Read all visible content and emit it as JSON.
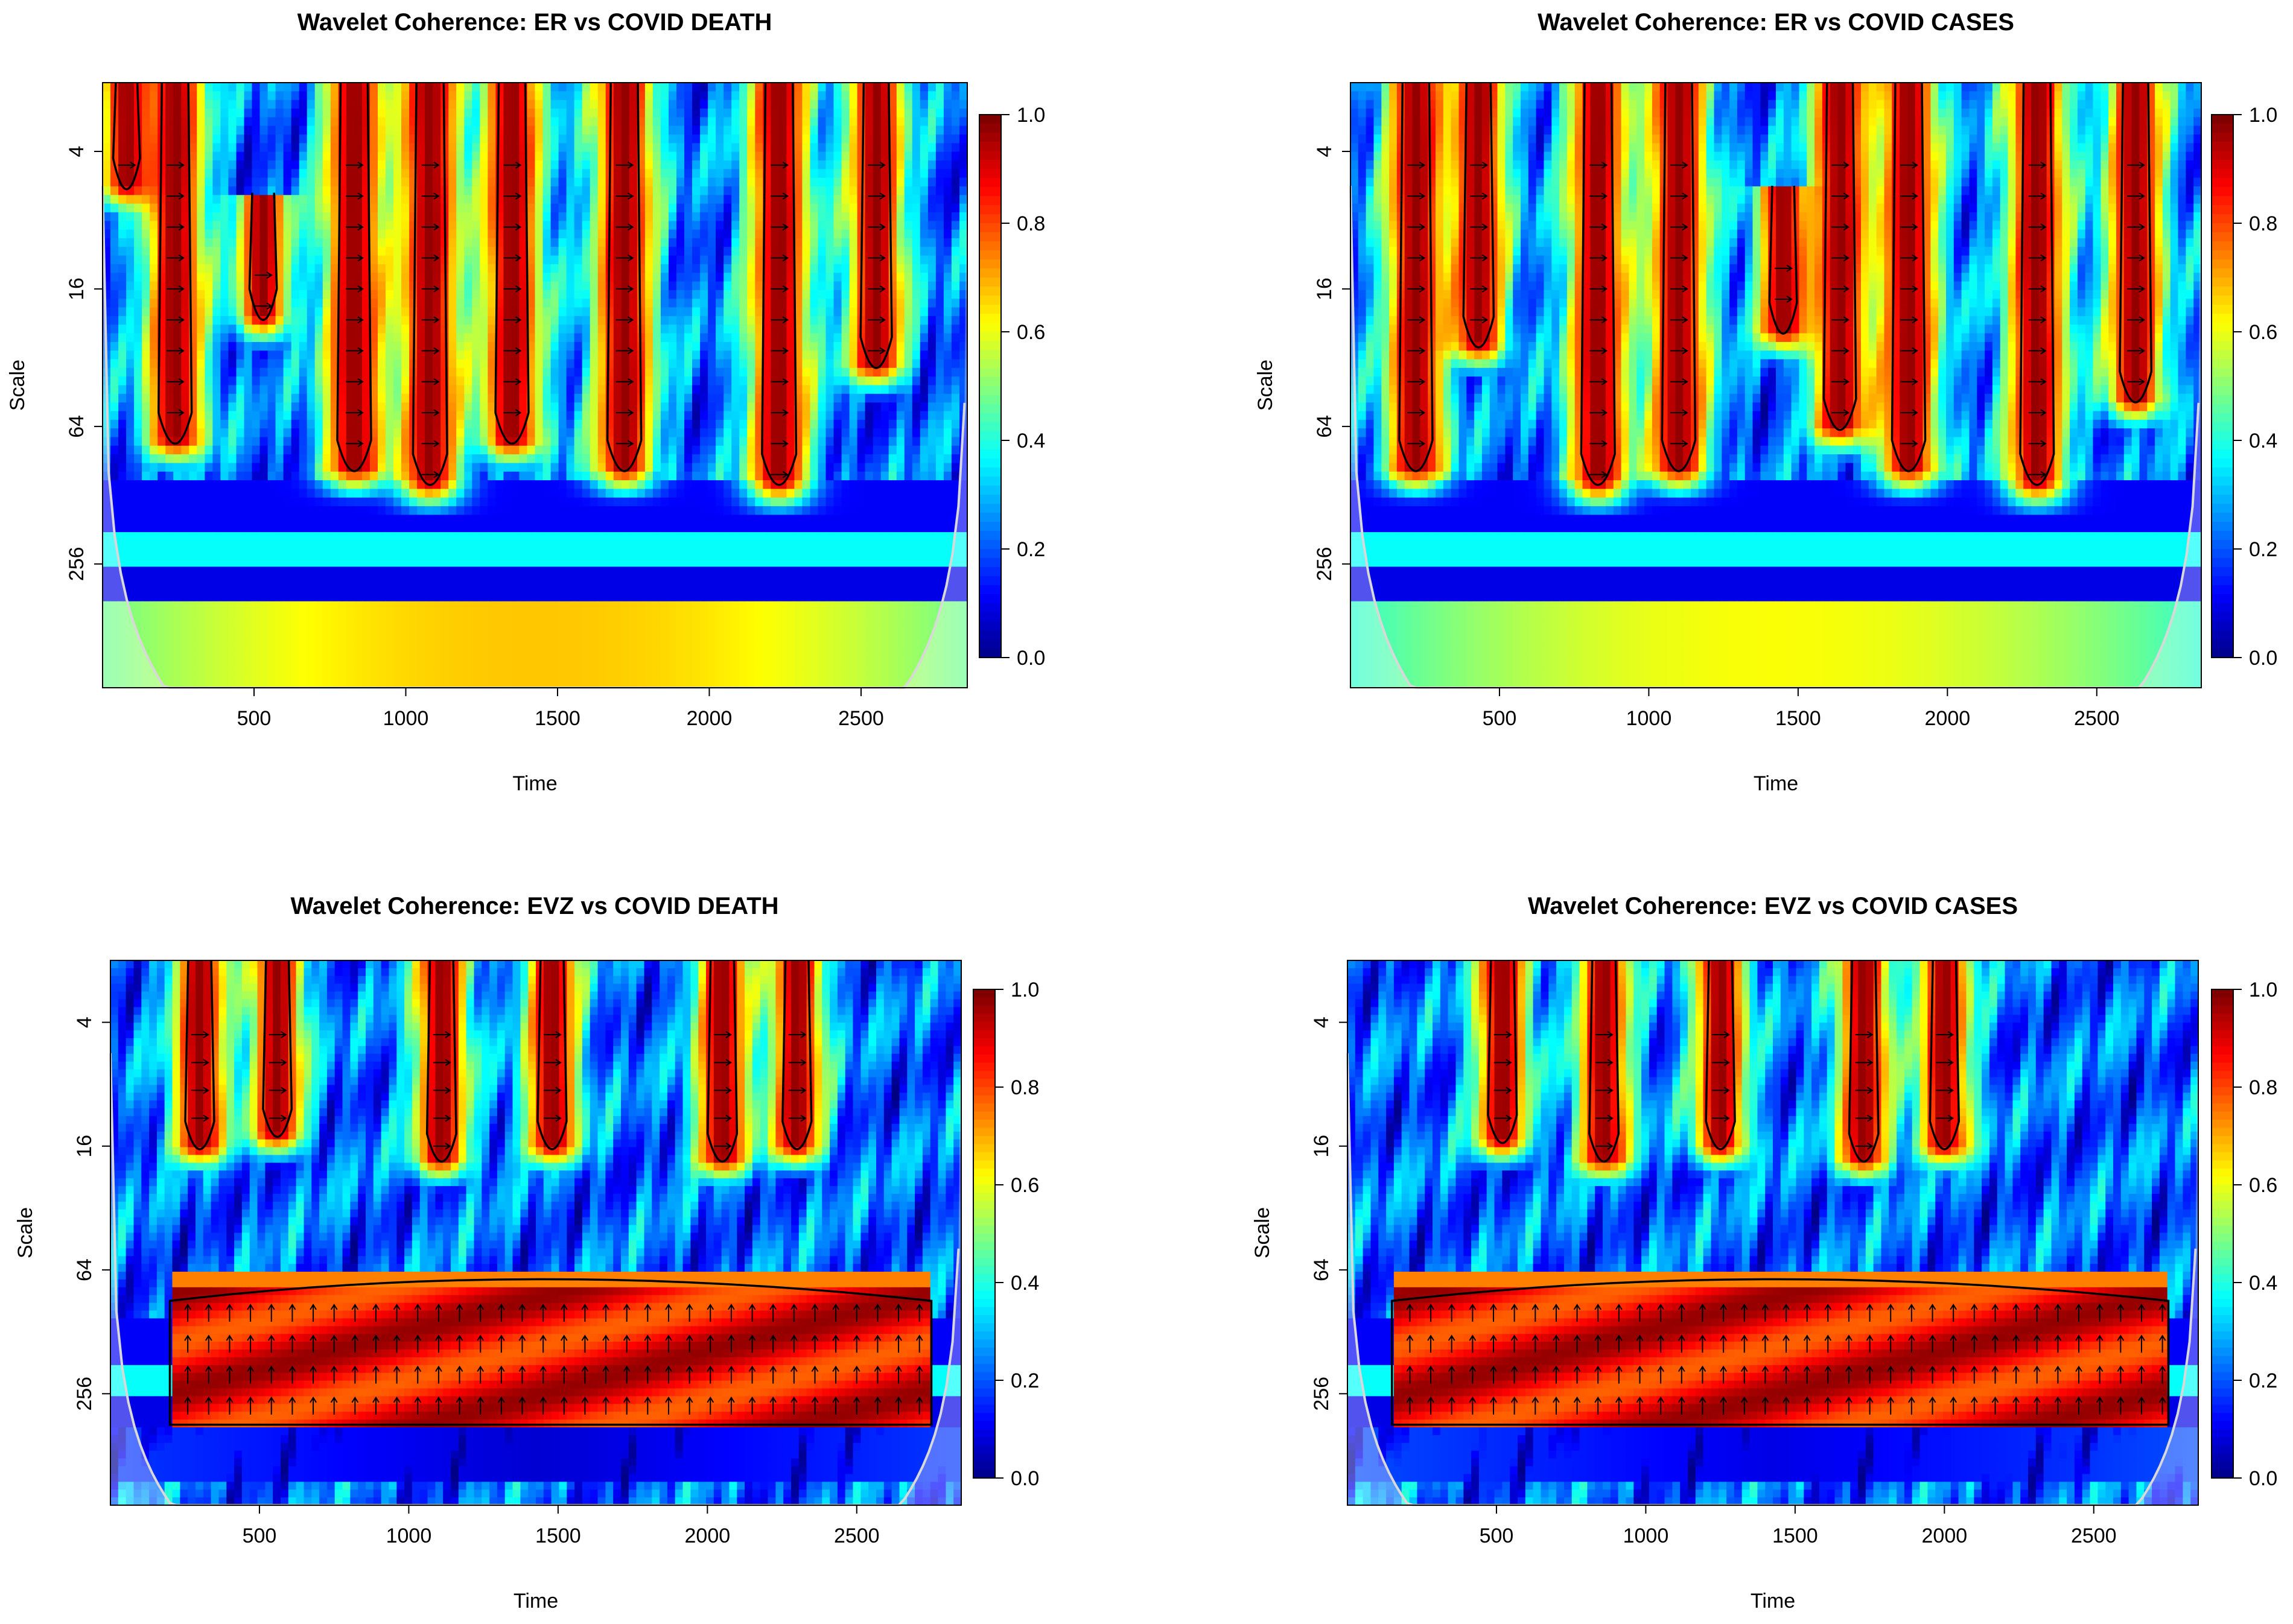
{
  "figure": {
    "layout": "2x2 grid of wavelet coherence plots"
  },
  "chart_data": [
    {
      "type": "heatmap",
      "title": "Wavelet Coherence: ER vs COVID DEATH",
      "xlabel": "Time",
      "ylabel": "Scale",
      "x_ticks": [
        500,
        1000,
        1500,
        2000,
        2500
      ],
      "y_ticks": [
        "4",
        "16",
        "64",
        "256"
      ],
      "xlim": [
        1,
        2850
      ],
      "ylim_scale_log2": [
        1,
        9.8
      ],
      "colorbar": {
        "ticks": [
          "0.0",
          "0.2",
          "0.4",
          "0.6",
          "0.8",
          "1.0"
        ],
        "min": 0,
        "max": 1,
        "palette": "jet"
      },
      "red_bands": [
        {
          "x": 80,
          "top": 1,
          "bottom": 2.5
        },
        {
          "x": 240,
          "top": 1,
          "bottom": 6.2
        },
        {
          "x": 530,
          "top": 2.6,
          "bottom": 4.4
        },
        {
          "x": 830,
          "top": 1,
          "bottom": 6.6
        },
        {
          "x": 1080,
          "top": 1,
          "bottom": 6.8
        },
        {
          "x": 1350,
          "top": 1,
          "bottom": 6.2
        },
        {
          "x": 1720,
          "top": 1,
          "bottom": 6.6
        },
        {
          "x": 2230,
          "top": 1,
          "bottom": 6.8
        },
        {
          "x": 2550,
          "top": 1,
          "bottom": 5.1
        }
      ],
      "low_band_coherence": 0.68,
      "low_band_scale_log2": 9.0
    },
    {
      "type": "heatmap",
      "title": "Wavelet Coherence: ER vs COVID CASES",
      "xlabel": "Time",
      "ylabel": "Scale",
      "x_ticks": [
        500,
        1000,
        1500,
        2000,
        2500
      ],
      "y_ticks": [
        "4",
        "16",
        "64",
        "256"
      ],
      "xlim": [
        1,
        2850
      ],
      "ylim_scale_log2": [
        1,
        9.8
      ],
      "colorbar": {
        "ticks": [
          "0.0",
          "0.2",
          "0.4",
          "0.6",
          "0.8",
          "1.0"
        ],
        "min": 0,
        "max": 1,
        "palette": "jet"
      },
      "red_bands": [
        {
          "x": 220,
          "top": 1,
          "bottom": 6.6
        },
        {
          "x": 430,
          "top": 1,
          "bottom": 4.8
        },
        {
          "x": 830,
          "top": 1,
          "bottom": 6.8
        },
        {
          "x": 1100,
          "top": 1,
          "bottom": 6.6
        },
        {
          "x": 1450,
          "top": 2.5,
          "bottom": 4.6
        },
        {
          "x": 1640,
          "top": 1,
          "bottom": 6.0
        },
        {
          "x": 1870,
          "top": 1,
          "bottom": 6.6
        },
        {
          "x": 2300,
          "top": 1,
          "bottom": 6.8
        },
        {
          "x": 2630,
          "top": 1,
          "bottom": 5.6
        }
      ],
      "low_band_coherence": 0.62,
      "low_band_scale_log2": 9.2
    },
    {
      "type": "heatmap",
      "title": "Wavelet Coherence: EVZ vs COVID DEATH",
      "xlabel": "Time",
      "ylabel": "Scale",
      "x_ticks": [
        500,
        1000,
        1500,
        2000,
        2500
      ],
      "y_ticks": [
        "4",
        "16",
        "64",
        "256"
      ],
      "xlim": [
        1,
        2850
      ],
      "ylim_scale_log2": [
        1,
        9.8
      ],
      "colorbar": {
        "ticks": [
          "0.0",
          "0.2",
          "0.4",
          "0.6",
          "0.8",
          "1.0"
        ],
        "min": 0,
        "max": 1,
        "palette": "jet"
      },
      "red_bands": [
        {
          "x": 300,
          "top": 1,
          "bottom": 4.0
        },
        {
          "x": 560,
          "top": 1,
          "bottom": 3.8
        },
        {
          "x": 1110,
          "top": 1,
          "bottom": 4.2
        },
        {
          "x": 1480,
          "top": 1,
          "bottom": 4.0
        },
        {
          "x": 2050,
          "top": 1,
          "bottom": 4.2
        },
        {
          "x": 2300,
          "top": 1,
          "bottom": 4.0
        }
      ],
      "wide_band": {
        "x_from": 200,
        "x_to": 2750,
        "top_log2": 6.3,
        "bottom_log2": 8.5
      },
      "low_band_coherence": 0.08
    },
    {
      "type": "heatmap",
      "title": "Wavelet Coherence: EVZ vs COVID CASES",
      "xlabel": "Time",
      "ylabel": "Scale",
      "x_ticks": [
        500,
        1000,
        1500,
        2000,
        2500
      ],
      "y_ticks": [
        "4",
        "16",
        "64",
        "256"
      ],
      "xlim": [
        1,
        2850
      ],
      "ylim_scale_log2": [
        1,
        9.8
      ],
      "colorbar": {
        "ticks": [
          "0.0",
          "0.2",
          "0.4",
          "0.6",
          "0.8",
          "1.0"
        ],
        "min": 0,
        "max": 1,
        "palette": "jet"
      },
      "red_bands": [
        {
          "x": 520,
          "top": 1,
          "bottom": 3.9
        },
        {
          "x": 860,
          "top": 1,
          "bottom": 4.2
        },
        {
          "x": 1250,
          "top": 1,
          "bottom": 4.0
        },
        {
          "x": 1730,
          "top": 1,
          "bottom": 4.2
        },
        {
          "x": 2000,
          "top": 1,
          "bottom": 4.0
        }
      ],
      "wide_band": {
        "x_from": 150,
        "x_to": 2750,
        "top_log2": 6.3,
        "bottom_log2": 8.5
      },
      "low_band_coherence": 0.1
    }
  ]
}
